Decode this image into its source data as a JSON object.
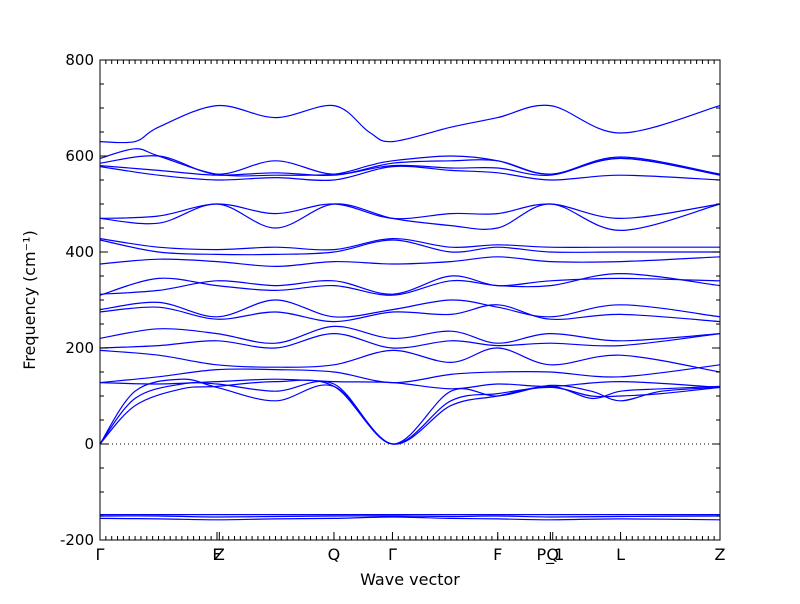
{
  "chart_data": {
    "type": "line",
    "title": "",
    "xlabel": "Wave vector",
    "ylabel": "Frequency (cm⁻¹)",
    "ylim": [
      -200,
      800
    ],
    "yticks": [
      -200,
      0,
      200,
      400,
      600,
      800
    ],
    "x_tick_labels": [
      {
        "x": 0,
        "label": "Γ"
      },
      {
        "x": 1.0,
        "label": "F"
      },
      {
        "x": 1.02,
        "label": "Z"
      },
      {
        "x": 2.0,
        "label": "Q"
      },
      {
        "x": 2.5,
        "label": "Γ"
      },
      {
        "x": 3.4,
        "label": "F"
      },
      {
        "x": 3.85,
        "label": "P_1"
      },
      {
        "x": 3.87,
        "label": "Q"
      },
      {
        "x": 4.45,
        "label": "L"
      },
      {
        "x": 5.3,
        "label": "Z"
      }
    ],
    "xlim": [
      0,
      5.3
    ],
    "zero_line": true,
    "line_color": "#0000ff",
    "series": [
      {
        "x": [
          0,
          0.5,
          1.0,
          1.5,
          2.0,
          2.5,
          3.0,
          3.4,
          3.85,
          4.45,
          5.3
        ],
        "values": [
          -150,
          -150,
          -152,
          -151,
          -150,
          -150,
          -151,
          -150,
          -152,
          -151,
          -150
        ]
      },
      {
        "x": [
          0,
          0.5,
          1.0,
          1.5,
          2.0,
          2.5,
          3.0,
          3.4,
          3.85,
          4.45,
          5.3
        ],
        "values": [
          -155,
          -156,
          -158,
          -156,
          -155,
          -152,
          -155,
          -156,
          -158,
          -156,
          -158
        ]
      },
      {
        "x": [
          0,
          0.5,
          1.0,
          1.5,
          2.0,
          2.5,
          3.0,
          3.4,
          3.85,
          4.45,
          5.3
        ],
        "values": [
          -147,
          -147,
          -147,
          -147,
          -147,
          -147,
          -147,
          -147,
          -147,
          -147,
          -147
        ]
      },
      {
        "x": [
          0,
          0.3,
          0.7,
          1.0,
          1.5,
          2.0,
          2.5,
          3.0,
          3.4,
          3.85,
          4.2,
          4.45,
          4.8,
          5.3
        ],
        "values": [
          0,
          80,
          115,
          120,
          130,
          120,
          0,
          90,
          105,
          118,
          100,
          100,
          105,
          118
        ]
      },
      {
        "x": [
          0,
          0.3,
          0.7,
          1.0,
          1.5,
          2.0,
          2.5,
          3.0,
          3.4,
          3.85,
          4.2,
          4.45,
          4.8,
          5.3
        ],
        "values": [
          0,
          95,
          125,
          125,
          110,
          125,
          0,
          110,
          100,
          122,
          110,
          90,
          110,
          118
        ]
      },
      {
        "x": [
          0,
          0.3,
          0.7,
          1.0,
          1.5,
          2.0,
          2.5,
          3.0,
          3.4,
          3.85,
          4.2,
          4.45,
          4.8,
          5.3
        ],
        "values": [
          0,
          110,
          135,
          118,
          90,
          120,
          0,
          80,
          100,
          120,
          95,
          110,
          115,
          120
        ]
      },
      {
        "x": [
          0,
          0.5,
          1.0,
          1.5,
          2.0,
          2.5,
          3.0,
          3.4,
          3.85,
          4.45,
          5.3
        ],
        "values": [
          128,
          125,
          130,
          135,
          130,
          128,
          115,
          125,
          120,
          130,
          118
        ]
      },
      {
        "x": [
          0,
          0.5,
          1.0,
          1.5,
          2.0,
          2.5,
          3.0,
          3.4,
          3.85,
          4.45,
          5.3
        ],
        "values": [
          128,
          140,
          155,
          155,
          150,
          128,
          145,
          150,
          150,
          140,
          165
        ]
      },
      {
        "x": [
          0,
          0.5,
          1.0,
          1.5,
          2.0,
          2.5,
          3.0,
          3.4,
          3.85,
          4.45,
          5.3
        ],
        "values": [
          195,
          185,
          165,
          160,
          165,
          195,
          170,
          200,
          165,
          185,
          150
        ]
      },
      {
        "x": [
          0,
          0.5,
          1.0,
          1.5,
          2.0,
          2.5,
          3.0,
          3.4,
          3.85,
          4.45,
          5.3
        ],
        "values": [
          200,
          205,
          215,
          200,
          230,
          200,
          215,
          205,
          210,
          205,
          230
        ]
      },
      {
        "x": [
          0,
          0.5,
          1.0,
          1.5,
          2.0,
          2.5,
          3.0,
          3.4,
          3.85,
          4.45,
          5.3
        ],
        "values": [
          220,
          240,
          230,
          210,
          245,
          220,
          235,
          210,
          230,
          215,
          230
        ]
      },
      {
        "x": [
          0,
          0.5,
          1.0,
          1.5,
          2.0,
          2.5,
          3.0,
          3.4,
          3.85,
          4.45,
          5.3
        ],
        "values": [
          275,
          285,
          260,
          275,
          255,
          275,
          270,
          290,
          260,
          270,
          255
        ]
      },
      {
        "x": [
          0,
          0.5,
          1.0,
          1.5,
          2.0,
          2.5,
          3.0,
          3.4,
          3.85,
          4.45,
          5.3
        ],
        "values": [
          280,
          295,
          265,
          300,
          265,
          280,
          300,
          285,
          265,
          290,
          265
        ]
      },
      {
        "x": [
          0,
          0.5,
          1.0,
          1.5,
          2.0,
          2.5,
          3.0,
          3.4,
          3.85,
          4.45,
          5.3
        ],
        "values": [
          310,
          345,
          330,
          320,
          330,
          310,
          340,
          330,
          330,
          355,
          330
        ]
      },
      {
        "x": [
          0,
          0.5,
          1.0,
          1.5,
          2.0,
          2.5,
          3.0,
          3.4,
          3.85,
          4.45,
          5.3
        ],
        "values": [
          312,
          320,
          340,
          330,
          340,
          312,
          350,
          330,
          340,
          345,
          340
        ]
      },
      {
        "x": [
          0,
          0.5,
          1.0,
          1.5,
          2.0,
          2.5,
          3.0,
          3.4,
          3.85,
          4.45,
          5.3
        ],
        "values": [
          375,
          385,
          380,
          370,
          380,
          375,
          380,
          390,
          380,
          380,
          390
        ]
      },
      {
        "x": [
          0,
          0.5,
          1.0,
          1.5,
          2.0,
          2.5,
          3.0,
          3.4,
          3.85,
          4.45,
          5.3
        ],
        "values": [
          425,
          400,
          395,
          395,
          400,
          425,
          400,
          410,
          400,
          400,
          400
        ]
      },
      {
        "x": [
          0,
          0.5,
          1.0,
          1.5,
          2.0,
          2.5,
          3.0,
          3.4,
          3.85,
          4.45,
          5.3
        ],
        "values": [
          428,
          410,
          405,
          410,
          405,
          428,
          410,
          415,
          410,
          410,
          410
        ]
      },
      {
        "x": [
          0,
          0.5,
          1.0,
          1.5,
          2.0,
          2.5,
          3.0,
          3.4,
          3.85,
          4.45,
          5.3
        ],
        "values": [
          470,
          460,
          500,
          450,
          500,
          470,
          455,
          450,
          500,
          445,
          500
        ]
      },
      {
        "x": [
          0,
          0.5,
          1.0,
          1.5,
          2.0,
          2.5,
          3.0,
          3.4,
          3.85,
          4.45,
          5.3
        ],
        "values": [
          470,
          475,
          500,
          480,
          500,
          470,
          480,
          480,
          500,
          470,
          500
        ]
      },
      {
        "x": [
          0,
          0.5,
          1.0,
          1.5,
          2.0,
          2.5,
          3.0,
          3.4,
          3.85,
          4.45,
          5.3
        ],
        "values": [
          578,
          560,
          550,
          555,
          550,
          578,
          570,
          565,
          550,
          560,
          550
        ]
      },
      {
        "x": [
          0,
          0.5,
          1.0,
          1.5,
          2.0,
          2.5,
          3.0,
          3.4,
          3.85,
          4.45,
          5.3
        ],
        "values": [
          580,
          570,
          560,
          565,
          560,
          580,
          575,
          575,
          560,
          595,
          560
        ]
      },
      {
        "x": [
          0,
          0.5,
          1.0,
          1.5,
          2.0,
          2.5,
          3.0,
          3.4,
          3.85,
          4.45,
          5.3
        ],
        "values": [
          585,
          600,
          562,
          590,
          562,
          585,
          590,
          590,
          562,
          595,
          562
        ]
      },
      {
        "x": [
          0,
          0.3,
          0.5,
          1.0,
          1.5,
          2.0,
          2.3,
          2.5,
          3.0,
          3.4,
          3.85,
          4.45,
          5.3
        ],
        "values": [
          630,
          630,
          660,
          705,
          680,
          705,
          650,
          630,
          660,
          680,
          705,
          648,
          705
        ]
      },
      {
        "x": [
          0,
          0.3,
          0.5,
          1.0,
          1.5,
          2.0,
          2.3,
          2.5,
          3.0,
          3.4,
          3.85,
          4.45,
          5.3
        ],
        "values": [
          595,
          615,
          600,
          562,
          560,
          562,
          580,
          590,
          600,
          590,
          562,
          598,
          562
        ]
      }
    ]
  }
}
